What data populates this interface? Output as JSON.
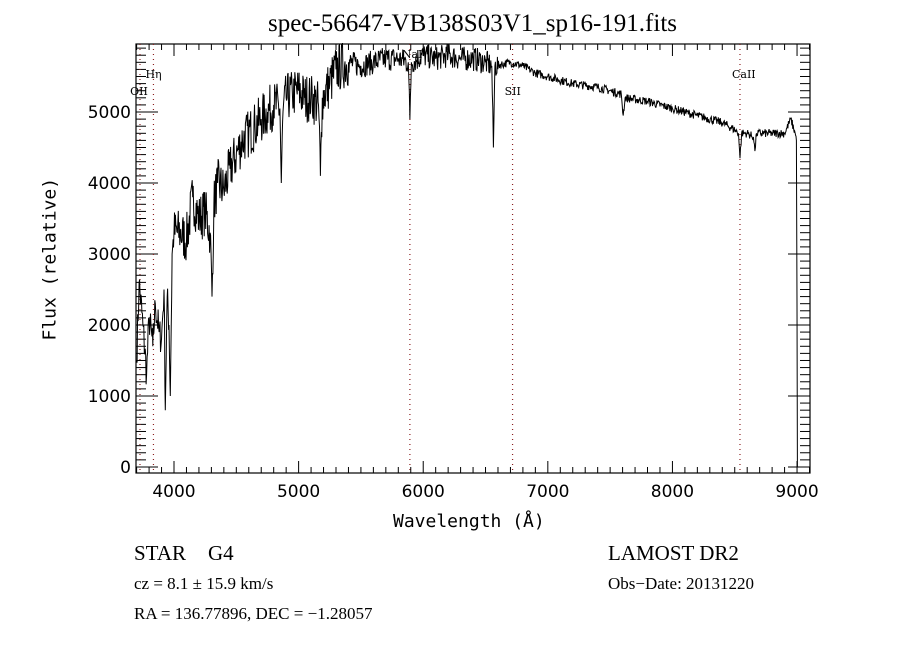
{
  "chart_data": {
    "type": "line",
    "title": "spec-56647-VB138S03V1_sp16-191.fits",
    "xlabel": "Wavelength (Å)",
    "ylabel": "Flux (relative)",
    "xlim": [
      3695,
      9104
    ],
    "ylim": [
      -85,
      5958
    ],
    "xticks": [
      4000,
      5000,
      6000,
      7000,
      8000,
      9000
    ],
    "yticks": [
      0,
      1000,
      2000,
      3000,
      4000,
      5000
    ],
    "x_minor_step": 100,
    "y_minor_step": 100,
    "grid": false,
    "line_color": "#000000",
    "marker_color": "#8b2020",
    "line_markers": [
      {
        "label": "OII",
        "wavelength": 3727,
        "label_level": "low"
      },
      {
        "label": "Hη",
        "wavelength": 3835,
        "label_level": "high"
      },
      {
        "label": "NaI",
        "wavelength": 5893,
        "label_level": "top"
      },
      {
        "label": "SII",
        "wavelength": 6717,
        "label_level": "low"
      },
      {
        "label": "CaII",
        "wavelength": 8542,
        "label_level": "high"
      }
    ],
    "series": [
      {
        "name": "flux",
        "x": [
          3700,
          3720,
          3750,
          3780,
          3800,
          3830,
          3850,
          3880,
          3900,
          3920,
          3930,
          3945,
          3960,
          3970,
          3985,
          4000,
          4050,
          4100,
          4150,
          4200,
          4250,
          4290,
          4305,
          4320,
          4350,
          4400,
          4450,
          4500,
          4550,
          4600,
          4650,
          4700,
          4750,
          4800,
          4850,
          4861,
          4875,
          4900,
          4950,
          5000,
          5050,
          5100,
          5160,
          5175,
          5190,
          5250,
          5300,
          5400,
          5500,
          5600,
          5700,
          5800,
          5880,
          5893,
          5905,
          6000,
          6100,
          6200,
          6300,
          6400,
          6500,
          6550,
          6563,
          6575,
          6700,
          6800,
          6900,
          7000,
          7200,
          7400,
          7590,
          7605,
          7620,
          7800,
          8000,
          8200,
          8400,
          8500,
          8530,
          8542,
          8555,
          8600,
          8650,
          8662,
          8675,
          8800,
          8900,
          8950,
          8985,
          8995,
          9000,
          9003
        ],
        "y": [
          1500,
          2600,
          2000,
          1300,
          2100,
          1700,
          2300,
          1900,
          1800,
          2500,
          800,
          2400,
          2000,
          1000,
          3000,
          3300,
          3300,
          3200,
          3800,
          3500,
          3600,
          3300,
          2400,
          3700,
          4000,
          3900,
          4200,
          4400,
          4600,
          4700,
          4800,
          4900,
          5000,
          5100,
          5050,
          4000,
          5000,
          5200,
          5250,
          5300,
          5200,
          5200,
          5100,
          4100,
          5200,
          5400,
          5600,
          5700,
          5650,
          5700,
          5750,
          5750,
          5700,
          4900,
          5700,
          5800,
          5750,
          5800,
          5750,
          5750,
          5700,
          5650,
          4500,
          5650,
          5700,
          5650,
          5550,
          5500,
          5400,
          5350,
          5250,
          4950,
          5200,
          5150,
          5050,
          4950,
          4850,
          4750,
          4700,
          4350,
          4700,
          4700,
          4650,
          4450,
          4700,
          4700,
          4700,
          4900,
          4700,
          4600,
          2300,
          0
        ]
      }
    ]
  },
  "footer": {
    "object_class": "STAR",
    "subclass": "G4",
    "cz": "cz = 8.1 ± 15.9 km/s",
    "coords": "RA = 136.77896, DEC =  −1.28057",
    "survey": "LAMOST DR2",
    "obs_date": "Obs−Date: 20131220"
  }
}
